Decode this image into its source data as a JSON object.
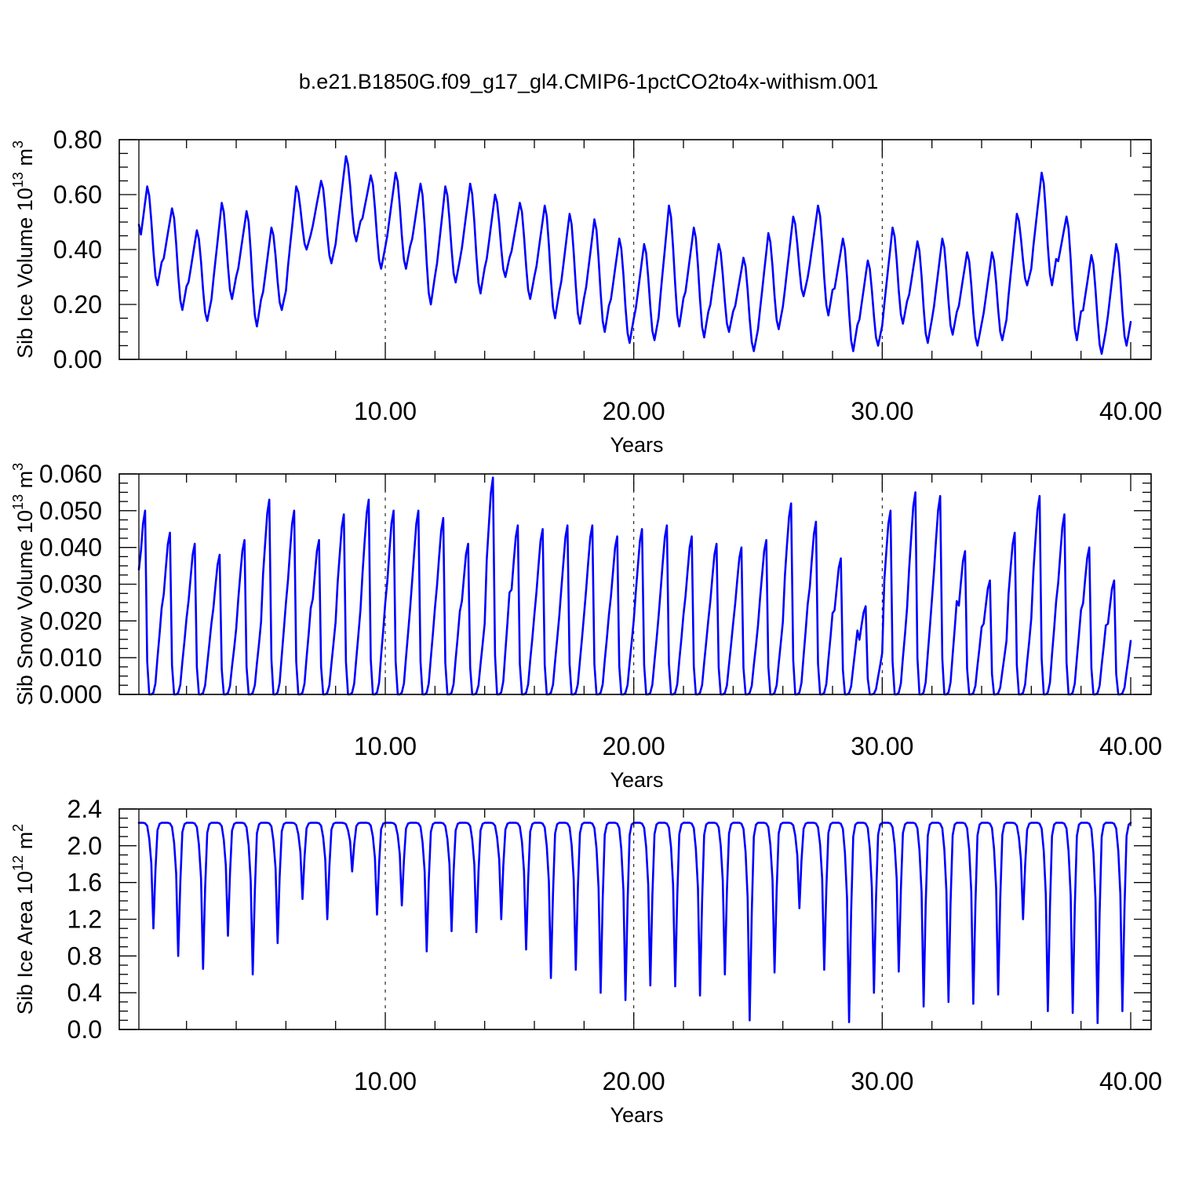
{
  "title": "b.e21.B1850G.f09_g17_gl4.CMIP6-1pctCO2to4x-withism.001",
  "line_color": "#0000ff",
  "chart_data": [
    {
      "type": "line",
      "ylabel": "Sib Ice Volume 10",
      "ylabel_sup": "13",
      "ylabel_unit": " m",
      "ylabel_unit_sup": "3",
      "xlabel": "Years",
      "xlim": [
        0.083,
        40.0
      ],
      "ylim": [
        0.0,
        0.8
      ],
      "x_ticks": [
        10,
        20,
        30,
        40
      ],
      "x_tick_labels": [
        "10.00",
        "20.00",
        "30.00",
        "40.00"
      ],
      "y_ticks": [
        0.0,
        0.2,
        0.4,
        0.6,
        0.8
      ],
      "y_tick_labels": [
        "0.00",
        "0.20",
        "0.40",
        "0.60",
        "0.80"
      ],
      "grid": "vertical dashed at major x ticks",
      "series": [
        {
          "x_start": 0.083,
          "x_step": 0.0833333,
          "annual_max": [
            0.63,
            0.55,
            0.47,
            0.57,
            0.54,
            0.48,
            0.63,
            0.65,
            0.74,
            0.67,
            0.68,
            0.64,
            0.63,
            0.64,
            0.6,
            0.57,
            0.56,
            0.53,
            0.51,
            0.44,
            0.42,
            0.56,
            0.48,
            0.42,
            0.37,
            0.46,
            0.52,
            0.56,
            0.44,
            0.36,
            0.48,
            0.43,
            0.44,
            0.39,
            0.39,
            0.53,
            0.68,
            0.52,
            0.38,
            0.42
          ],
          "annual_min": [
            0.27,
            0.18,
            0.14,
            0.22,
            0.12,
            0.18,
            0.4,
            0.35,
            0.43,
            0.33,
            0.33,
            0.2,
            0.28,
            0.24,
            0.3,
            0.22,
            0.15,
            0.13,
            0.1,
            0.06,
            0.07,
            0.12,
            0.08,
            0.1,
            0.03,
            0.11,
            0.23,
            0.16,
            0.03,
            0.05,
            0.13,
            0.06,
            0.09,
            0.05,
            0.07,
            0.27,
            0.27,
            0.07,
            0.02,
            0.05
          ],
          "values": [
            0.49
          ]
        }
      ]
    },
    {
      "type": "line",
      "ylabel": "Sib Snow Volume 10",
      "ylabel_sup": "13",
      "ylabel_unit": " m",
      "ylabel_unit_sup": "3",
      "xlabel": "Years",
      "xlim": [
        0.083,
        40.0
      ],
      "ylim": [
        0.0,
        0.06
      ],
      "x_ticks": [
        10,
        20,
        30,
        40
      ],
      "x_tick_labels": [
        "10.00",
        "20.00",
        "30.00",
        "40.00"
      ],
      "y_ticks": [
        0.0,
        0.01,
        0.02,
        0.03,
        0.04,
        0.05,
        0.06
      ],
      "y_tick_labels": [
        "0.000",
        "0.010",
        "0.020",
        "0.030",
        "0.040",
        "0.050",
        "0.060"
      ],
      "grid": "vertical dashed at major x ticks",
      "series": [
        {
          "x_start": 0.083,
          "x_step": 0.0833333,
          "annual_max": [
            0.05,
            0.044,
            0.041,
            0.038,
            0.042,
            0.053,
            0.05,
            0.042,
            0.049,
            0.053,
            0.05,
            0.05,
            0.048,
            0.041,
            0.059,
            0.046,
            0.045,
            0.046,
            0.046,
            0.043,
            0.045,
            0.046,
            0.043,
            0.041,
            0.04,
            0.042,
            0.052,
            0.047,
            0.037,
            0.024,
            0.05,
            0.055,
            0.054,
            0.039,
            0.031,
            0.044,
            0.054,
            0.049,
            0.04,
            0.031
          ],
          "values": [
            0.034
          ]
        }
      ]
    },
    {
      "type": "line",
      "ylabel": "Sib Ice Area 10",
      "ylabel_sup": "12",
      "ylabel_unit": " m",
      "ylabel_unit_sup": "2",
      "xlabel": "Years",
      "xlim": [
        0.083,
        40.0
      ],
      "ylim": [
        0.0,
        2.4
      ],
      "x_ticks": [
        10,
        20,
        30,
        40
      ],
      "x_tick_labels": [
        "10.00",
        "20.00",
        "30.00",
        "40.00"
      ],
      "y_ticks": [
        0.0,
        0.4,
        0.8,
        1.2,
        1.6,
        2.0,
        2.4
      ],
      "y_tick_labels": [
        "0.0",
        "0.4",
        "0.8",
        "1.2",
        "1.6",
        "2.0",
        "2.4"
      ],
      "grid": "vertical dashed at major x ticks",
      "series": [
        {
          "x_start": 0.083,
          "x_step": 0.0833333,
          "annual_max": 2.25,
          "annual_min": [
            1.1,
            0.8,
            0.66,
            1.02,
            0.6,
            0.94,
            1.42,
            1.2,
            1.72,
            1.25,
            1.35,
            0.85,
            1.07,
            1.06,
            1.2,
            0.87,
            0.56,
            0.65,
            0.4,
            0.32,
            0.48,
            0.47,
            0.37,
            0.6,
            0.1,
            0.62,
            1.32,
            0.65,
            0.08,
            0.4,
            0.63,
            0.25,
            0.3,
            0.28,
            0.38,
            1.2,
            0.2,
            0.18,
            0.07,
            0.2
          ],
          "values": [
            2.25
          ]
        }
      ]
    }
  ]
}
